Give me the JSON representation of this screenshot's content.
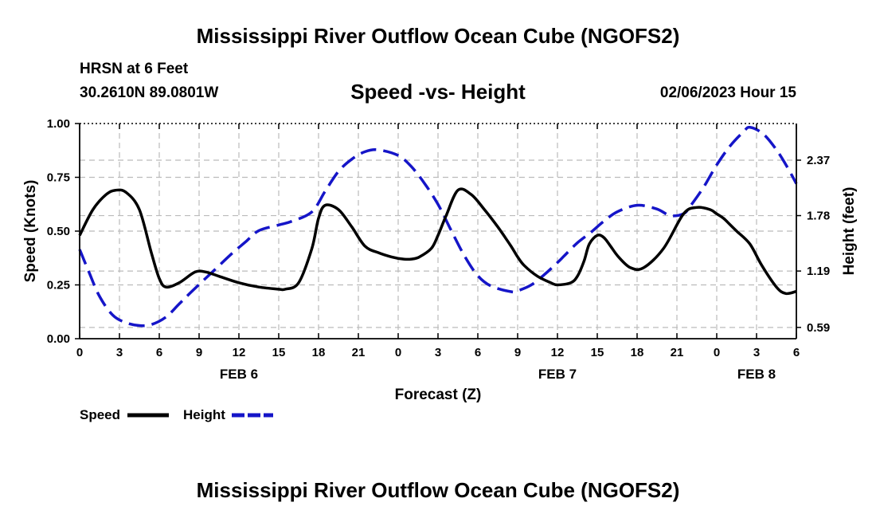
{
  "header": {
    "title": "Mississippi River Outflow Ocean Cube (NGOFS2)",
    "station": "HRSN at 6 Feet",
    "coords": "30.2610N  89.0801W",
    "subtitle": "Speed -vs- Height",
    "datetime": "02/06/2023 Hour 15"
  },
  "footer": {
    "title": "Mississippi River Outflow Ocean Cube (NGOFS2)"
  },
  "colors": {
    "speed": "#000000",
    "height": "#1515c8",
    "grid": "#bbbbbb"
  },
  "chart_data": {
    "type": "line",
    "xlabel": "Forecast (Z)",
    "ylabel": "Speed (Knots)",
    "y2label": "Height (feet)",
    "x_range_hours": [
      0,
      54
    ],
    "ylim": [
      0,
      1.0
    ],
    "y2lim": [
      0.47,
      2.76
    ],
    "y_ticks": [
      "0.00",
      "0.25",
      "0.50",
      "0.75",
      "1.00"
    ],
    "y_tick_values": [
      0,
      0.25,
      0.5,
      0.75,
      1.0
    ],
    "y2_ticks": [
      "0.59",
      "1.19",
      "1.78",
      "2.37"
    ],
    "y2_tick_values": [
      0.59,
      1.19,
      1.78,
      2.37
    ],
    "x_ticks": [
      "0",
      "3",
      "6",
      "9",
      "12",
      "15",
      "18",
      "21",
      "0",
      "3",
      "6",
      "9",
      "12",
      "15",
      "18",
      "21",
      "0",
      "3",
      "6"
    ],
    "date_labels": [
      {
        "label": "FEB 6",
        "hour": 12
      },
      {
        "label": "FEB 7",
        "hour": 36
      },
      {
        "label": "FEB 8",
        "hour": 51
      }
    ],
    "legend": [
      {
        "name": "Speed",
        "style": "solid"
      },
      {
        "name": "Height",
        "style": "dashed"
      }
    ],
    "series": [
      {
        "name": "Speed",
        "units": "knots",
        "x": [
          0,
          1,
          2,
          2.7,
          3.5,
          4.5,
          5.4,
          6,
          6.5,
          7.5,
          8.7,
          9.5,
          10.5,
          12,
          13.5,
          15,
          15.5,
          16.5,
          17.5,
          18,
          18.5,
          19.5,
          20.5,
          21.5,
          22.5,
          23.5,
          24.4,
          25,
          25.6,
          26.5,
          27,
          27.6,
          28.5,
          29.5,
          30.5,
          31.5,
          32.5,
          33,
          33.5,
          34.5,
          35.5,
          36,
          37,
          37.5,
          38,
          38.4,
          39,
          39.5,
          40,
          40.6,
          41.5,
          42.5,
          44,
          45.5,
          46.5,
          47.5,
          48,
          48.5,
          49,
          49.5,
          50.5,
          51.4,
          52.5,
          53.2,
          54
        ],
        "values": [
          0.48,
          0.6,
          0.67,
          0.69,
          0.68,
          0.6,
          0.4,
          0.28,
          0.24,
          0.26,
          0.31,
          0.31,
          0.29,
          0.26,
          0.24,
          0.23,
          0.23,
          0.26,
          0.42,
          0.56,
          0.62,
          0.6,
          0.52,
          0.43,
          0.4,
          0.38,
          0.37,
          0.37,
          0.38,
          0.42,
          0.48,
          0.57,
          0.69,
          0.67,
          0.6,
          0.52,
          0.43,
          0.38,
          0.34,
          0.29,
          0.26,
          0.25,
          0.26,
          0.29,
          0.36,
          0.44,
          0.48,
          0.47,
          0.43,
          0.38,
          0.33,
          0.33,
          0.42,
          0.58,
          0.61,
          0.6,
          0.58,
          0.56,
          0.53,
          0.5,
          0.44,
          0.34,
          0.24,
          0.21,
          0.22
        ]
      },
      {
        "name": "Height",
        "units": "feet",
        "x": [
          0,
          0.7,
          1.5,
          2.5,
          3.5,
          4.5,
          5.4,
          6.5,
          7.5,
          8.5,
          10,
          11.5,
          12.5,
          13.5,
          15,
          16,
          17.5,
          18.5,
          19.5,
          20.5,
          21.5,
          22.5,
          24,
          25,
          26,
          27,
          28,
          29,
          30,
          31,
          32.5,
          33,
          34,
          35,
          36,
          36.5,
          37.5,
          38.5,
          39.5,
          40.5,
          42,
          43.5,
          44.5,
          45.5,
          46,
          47,
          48,
          49,
          50,
          50.5,
          51.5,
          52.5,
          53.3,
          54
        ],
        "values": [
          1.42,
          1.18,
          0.92,
          0.72,
          0.64,
          0.61,
          0.62,
          0.7,
          0.84,
          0.98,
          1.18,
          1.38,
          1.5,
          1.62,
          1.68,
          1.72,
          1.82,
          2.04,
          2.25,
          2.38,
          2.46,
          2.48,
          2.42,
          2.3,
          2.12,
          1.9,
          1.62,
          1.35,
          1.14,
          1.03,
          0.97,
          0.98,
          1.04,
          1.15,
          1.28,
          1.35,
          1.49,
          1.6,
          1.72,
          1.82,
          1.89,
          1.85,
          1.78,
          1.8,
          1.88,
          2.08,
          2.32,
          2.52,
          2.67,
          2.72,
          2.65,
          2.48,
          2.3,
          2.12
        ]
      }
    ]
  }
}
